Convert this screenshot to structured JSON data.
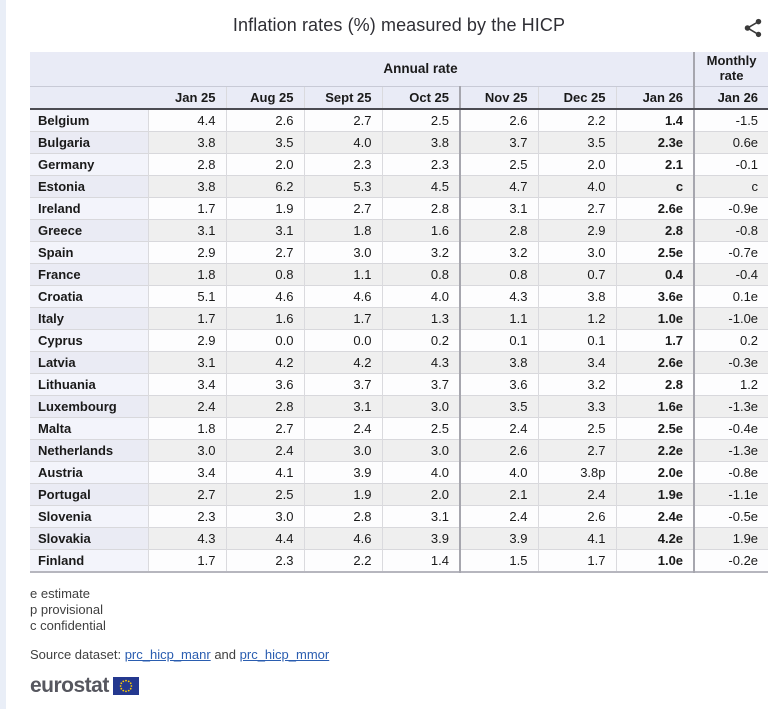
{
  "chart_data": {
    "type": "table",
    "title": "Inflation rates (%) measured by the HICP",
    "column_groups": [
      {
        "label": "Annual rate",
        "span": 7
      },
      {
        "label": "Monthly rate",
        "span": 1
      }
    ],
    "columns": [
      "Jan 25",
      "Aug 25",
      "Sept 25",
      "Oct 25",
      "Nov 25",
      "Dec 25",
      "Jan 26",
      "Jan 26"
    ],
    "rows": [
      {
        "country": "Belgium",
        "values": [
          "4.4",
          "2.6",
          "2.7",
          "2.5",
          "2.6",
          "2.2",
          "1.4",
          "-1.5"
        ]
      },
      {
        "country": "Bulgaria",
        "values": [
          "3.8",
          "3.5",
          "4.0",
          "3.8",
          "3.7",
          "3.5",
          "2.3e",
          "0.6e"
        ]
      },
      {
        "country": "Germany",
        "values": [
          "2.8",
          "2.0",
          "2.3",
          "2.3",
          "2.5",
          "2.0",
          "2.1",
          "-0.1"
        ]
      },
      {
        "country": "Estonia",
        "values": [
          "3.8",
          "6.2",
          "5.3",
          "4.5",
          "4.7",
          "4.0",
          "c",
          "c"
        ]
      },
      {
        "country": "Ireland",
        "values": [
          "1.7",
          "1.9",
          "2.7",
          "2.8",
          "3.1",
          "2.7",
          "2.6e",
          "-0.9e"
        ]
      },
      {
        "country": "Greece",
        "values": [
          "3.1",
          "3.1",
          "1.8",
          "1.6",
          "2.8",
          "2.9",
          "2.8",
          "-0.8"
        ]
      },
      {
        "country": "Spain",
        "values": [
          "2.9",
          "2.7",
          "3.0",
          "3.2",
          "3.2",
          "3.0",
          "2.5e",
          "-0.7e"
        ]
      },
      {
        "country": "France",
        "values": [
          "1.8",
          "0.8",
          "1.1",
          "0.8",
          "0.8",
          "0.7",
          "0.4",
          "-0.4"
        ]
      },
      {
        "country": "Croatia",
        "values": [
          "5.1",
          "4.6",
          "4.6",
          "4.0",
          "4.3",
          "3.8",
          "3.6e",
          "0.1e"
        ]
      },
      {
        "country": "Italy",
        "values": [
          "1.7",
          "1.6",
          "1.7",
          "1.3",
          "1.1",
          "1.2",
          "1.0e",
          "-1.0e"
        ]
      },
      {
        "country": "Cyprus",
        "values": [
          "2.9",
          "0.0",
          "0.0",
          "0.2",
          "0.1",
          "0.1",
          "1.7",
          "0.2"
        ]
      },
      {
        "country": "Latvia",
        "values": [
          "3.1",
          "4.2",
          "4.2",
          "4.3",
          "3.8",
          "3.4",
          "2.6e",
          "-0.3e"
        ]
      },
      {
        "country": "Lithuania",
        "values": [
          "3.4",
          "3.6",
          "3.7",
          "3.7",
          "3.6",
          "3.2",
          "2.8",
          "1.2"
        ]
      },
      {
        "country": "Luxembourg",
        "values": [
          "2.4",
          "2.8",
          "3.1",
          "3.0",
          "3.5",
          "3.3",
          "1.6e",
          "-1.3e"
        ]
      },
      {
        "country": "Malta",
        "values": [
          "1.8",
          "2.7",
          "2.4",
          "2.5",
          "2.4",
          "2.5",
          "2.5e",
          "-0.4e"
        ]
      },
      {
        "country": "Netherlands",
        "values": [
          "3.0",
          "2.4",
          "3.0",
          "3.0",
          "2.6",
          "2.7",
          "2.2e",
          "-1.3e"
        ]
      },
      {
        "country": "Austria",
        "values": [
          "3.4",
          "4.1",
          "3.9",
          "4.0",
          "4.0",
          "3.8p",
          "2.0e",
          "-0.8e"
        ]
      },
      {
        "country": "Portugal",
        "values": [
          "2.7",
          "2.5",
          "1.9",
          "2.0",
          "2.1",
          "2.4",
          "1.9e",
          "-1.1e"
        ]
      },
      {
        "country": "Slovenia",
        "values": [
          "2.3",
          "3.0",
          "2.8",
          "3.1",
          "2.4",
          "2.6",
          "2.4e",
          "-0.5e"
        ]
      },
      {
        "country": "Slovakia",
        "values": [
          "4.3",
          "4.4",
          "4.6",
          "3.9",
          "3.9",
          "4.1",
          "4.2e",
          "1.9e"
        ]
      },
      {
        "country": "Finland",
        "values": [
          "1.7",
          "2.3",
          "2.2",
          "1.4",
          "1.5",
          "1.7",
          "1.0e",
          "-0.2e"
        ]
      }
    ],
    "flags": {
      "e": "estimate",
      "p": "provisional",
      "c": "confidential"
    }
  },
  "ui": {
    "share_icon": "share-icon",
    "footnotes": [
      "e estimate",
      "p provisional",
      "c confidential"
    ],
    "source": {
      "prefix": "Source dataset:",
      "and": "and",
      "links": [
        "prc_hicp_manr",
        "prc_hicp_mmor"
      ]
    },
    "logo_text": "eurostat",
    "colors": {
      "header_bg": "#e9ebf6",
      "label_col_bg": "#f3f4fb",
      "stripe_bg": "#efefef",
      "link": "#2a5db0",
      "flag_blue": "#24388f",
      "flag_stars": "#ffcc00"
    }
  }
}
